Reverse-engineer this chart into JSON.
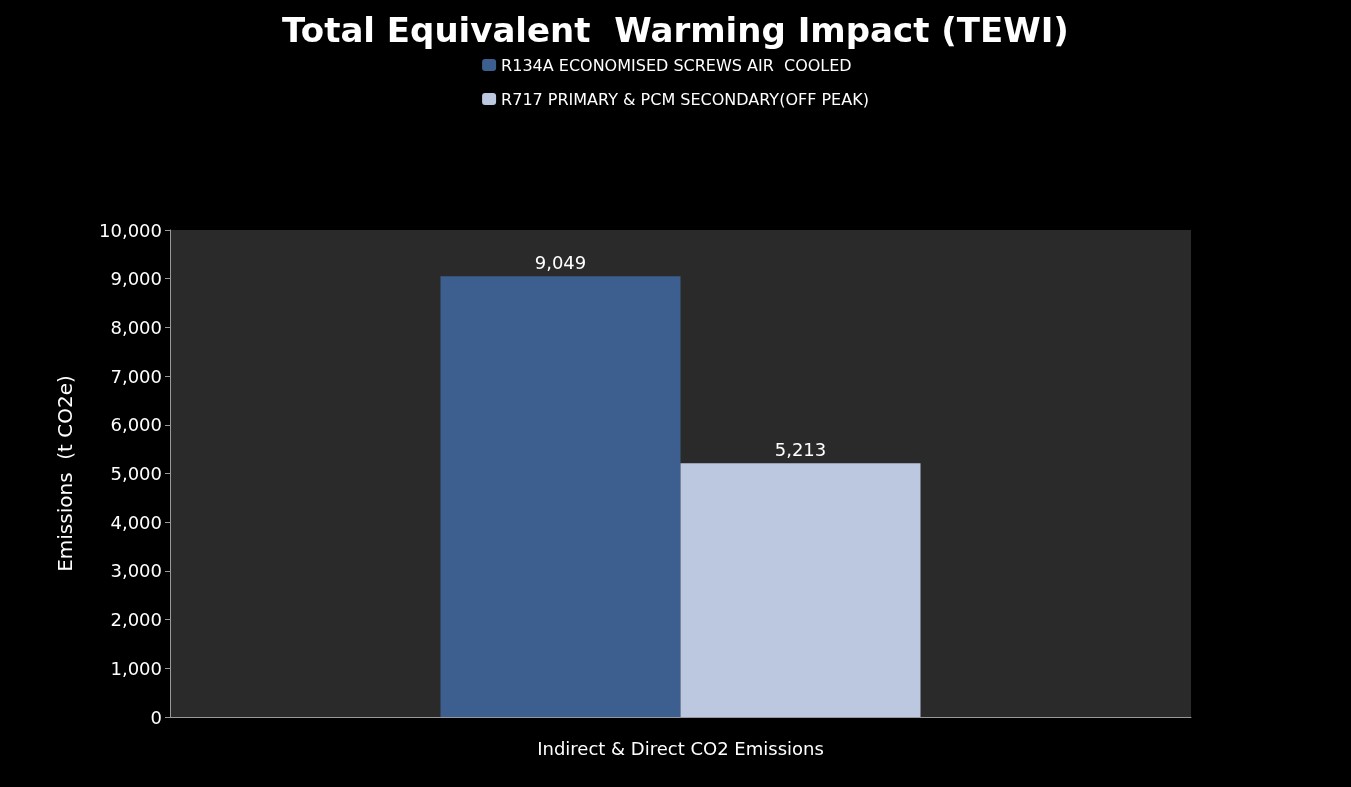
{
  "chart_data": {
    "type": "bar",
    "title": "Total Equivalent  Warming Impact (TEWI)",
    "ylabel": "Emissions  (t CO2e)",
    "categories": [
      "Indirect & Direct CO2 Emissions"
    ],
    "series": [
      {
        "name": "R134A ECONOMISED SCREWS AIR  COOLED",
        "color": "#3d5f8f",
        "values": [
          9049
        ],
        "value_labels": [
          "9,049"
        ]
      },
      {
        "name": "R717 PRIMARY & PCM SECONDARY(OFF PEAK)",
        "color": "#bcc8e0",
        "values": [
          5213
        ],
        "value_labels": [
          "5,213"
        ]
      }
    ],
    "ylim": [
      0,
      10000
    ],
    "yticks": [
      0,
      {
        "value": 1000,
        "label": "1,000"
      },
      {
        "value": 2000,
        "label": "2,000"
      },
      {
        "value": 3000,
        "label": "3,000"
      },
      {
        "value": 4000,
        "label": "4,000"
      },
      {
        "value": 5000,
        "label": "5,000"
      },
      {
        "value": 6000,
        "label": "6,000"
      },
      {
        "value": 7000,
        "label": "7,000"
      },
      {
        "value": 8000,
        "label": "8,000"
      },
      {
        "value": 9000,
        "label": "9,000"
      },
      {
        "value": 10000,
        "label": "10,000"
      }
    ],
    "grid": false,
    "legend": "top"
  }
}
